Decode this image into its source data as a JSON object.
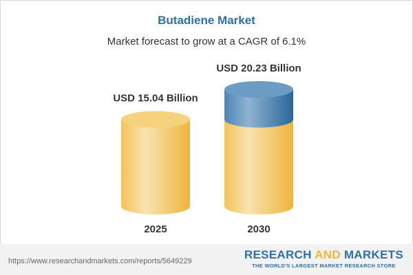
{
  "header": {
    "title": "Butadiene Market",
    "subtitle": "Market forecast to grow at a CAGR of 6.1%"
  },
  "chart_data": {
    "type": "bar",
    "style": "3d-cylinder",
    "categories": [
      "2025",
      "2030"
    ],
    "values": [
      15.04,
      20.23
    ],
    "data_labels": [
      "USD 15.04 Billion",
      "USD 20.23 Billion"
    ],
    "unit": "USD Billion",
    "colors": {
      "base": "#f2c45a",
      "growth": "#4a84b5"
    }
  },
  "footer": {
    "url": "https://www.researchandmarkets.com/reports/5649229",
    "brand_part1": "RESEARCH ",
    "brand_part2": "AND",
    "brand_part3": " MARKETS",
    "tagline": "THE WORLD'S LARGEST MARKET RESEARCH STORE"
  }
}
